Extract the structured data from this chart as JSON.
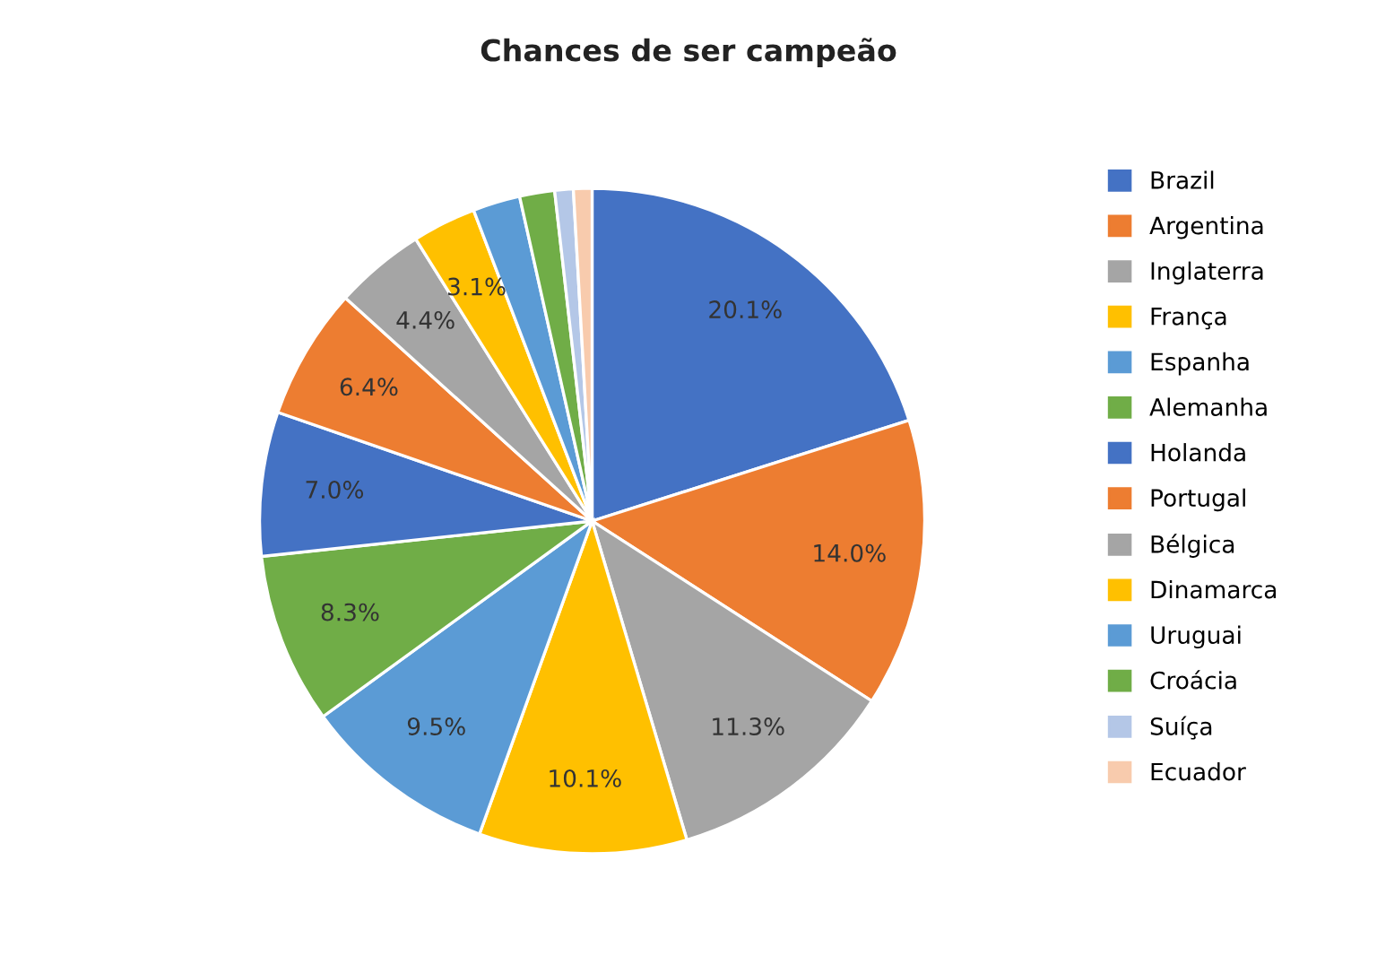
{
  "chart_data": {
    "type": "pie",
    "title": "Chances de ser campeão",
    "categories": [
      "Brazil",
      "Argentina",
      "Inglaterra",
      "França",
      "Espanha",
      "Alemanha",
      "Holanda",
      "Portugal",
      "Bélgica",
      "Dinamarca",
      "Uruguai",
      "Croácia",
      "Suíça",
      "Ecuador"
    ],
    "values": [
      20.1,
      14.0,
      11.3,
      10.1,
      9.5,
      8.3,
      7.0,
      6.4,
      4.4,
      3.1,
      2.3,
      1.7,
      0.9,
      0.9
    ],
    "value_labels": [
      "20.1%",
      "14.0%",
      "11.3%",
      "10.1%",
      "9.5%",
      "8.3%",
      "7.0%",
      "6.4%",
      "4.4%",
      "3.1%",
      null,
      null,
      null,
      null
    ],
    "colors": [
      "#4472c4",
      "#ed7d31",
      "#a5a5a5",
      "#ffc000",
      "#5b9bd5",
      "#70ad47",
      "#4472c4",
      "#ed7d31",
      "#a5a5a5",
      "#ffc000",
      "#5b9bd5",
      "#70ad47",
      "#b4c7e7",
      "#f8cbad"
    ],
    "legend": "right"
  }
}
